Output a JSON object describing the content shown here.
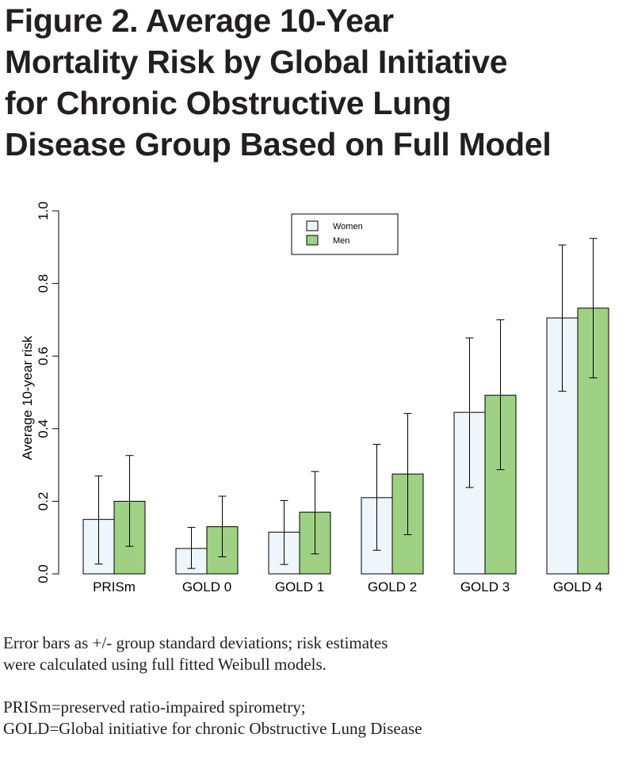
{
  "title_lines": [
    "Figure 2. Average 10-Year",
    "Mortality Risk by Global Initiative",
    "for Chronic Obstructive Lung",
    "Disease Group Based on Full Model"
  ],
  "notes": {
    "note1_line1": "Error bars as +/- group standard deviations; risk estimates",
    "note1_line2": "were calculated using full fitted Weibull models.",
    "note2_line1": "PRISm=preserved ratio-impaired spirometry;",
    "note2_line2": "GOLD=Global initiative for chronic Obstructive Lung Disease"
  },
  "chart_data": {
    "type": "bar",
    "title": "",
    "xlabel": "",
    "ylabel": "Average 10-year risk",
    "ylim": [
      0,
      1
    ],
    "yticks": [
      "0.0",
      "0.2",
      "0.4",
      "0.6",
      "0.8",
      "1.0"
    ],
    "legend_position": "top-center",
    "categories": [
      "PRISm",
      "GOLD 0",
      "GOLD 1",
      "GOLD 2",
      "GOLD 3",
      "GOLD 4"
    ],
    "series": [
      {
        "name": "Women",
        "color": "#eef6fc",
        "values": [
          0.15,
          0.07,
          0.115,
          0.21,
          0.445,
          0.705
        ],
        "err_low": [
          0.027,
          0.015,
          0.026,
          0.065,
          0.238,
          0.503
        ],
        "err_high": [
          0.27,
          0.128,
          0.202,
          0.357,
          0.65,
          0.906
        ]
      },
      {
        "name": "Men",
        "color": "#9ed184",
        "values": [
          0.2,
          0.13,
          0.17,
          0.275,
          0.492,
          0.732
        ],
        "err_low": [
          0.076,
          0.047,
          0.055,
          0.108,
          0.287,
          0.54
        ],
        "err_high": [
          0.326,
          0.214,
          0.282,
          0.442,
          0.7,
          0.924
        ]
      }
    ]
  }
}
